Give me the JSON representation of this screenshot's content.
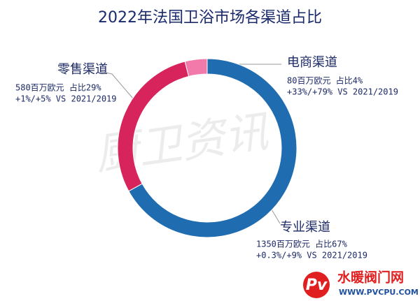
{
  "chart_data": {
    "type": "donut",
    "title": "2022年法国卫浴市场各渠道占比",
    "categories": [
      "专业渠道",
      "零售渠道",
      "电商渠道"
    ],
    "values": [
      67,
      29,
      4
    ],
    "value_labels": [
      "1350百万欧元 占比67%",
      "580百万欧元 占比29%",
      "80百万欧元 占比4%"
    ],
    "notes": [
      "+0.3%/+9% VS 2021/2019",
      "+1%/+5% VS 2021/2019",
      "+33%/+79% VS 2021/2019"
    ],
    "colors": [
      "#1f6db0",
      "#d8245c",
      "#f27aaa"
    ]
  },
  "watermark": "厨卫资讯",
  "logo": {
    "name": "水暖阀门网",
    "url": "WWW.PVCPU.COM"
  }
}
